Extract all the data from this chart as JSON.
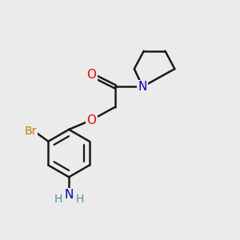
{
  "background_color": "#ebebeb",
  "bond_color": "#1a1a1a",
  "bond_width": 1.8,
  "figsize": [
    3.0,
    3.0
  ],
  "dpi": 100,
  "colors": {
    "O": "#ff0000",
    "N": "#0000cc",
    "Br": "#cc7700",
    "NH2_N": "#0000cc",
    "NH2_H": "#5a9090"
  }
}
